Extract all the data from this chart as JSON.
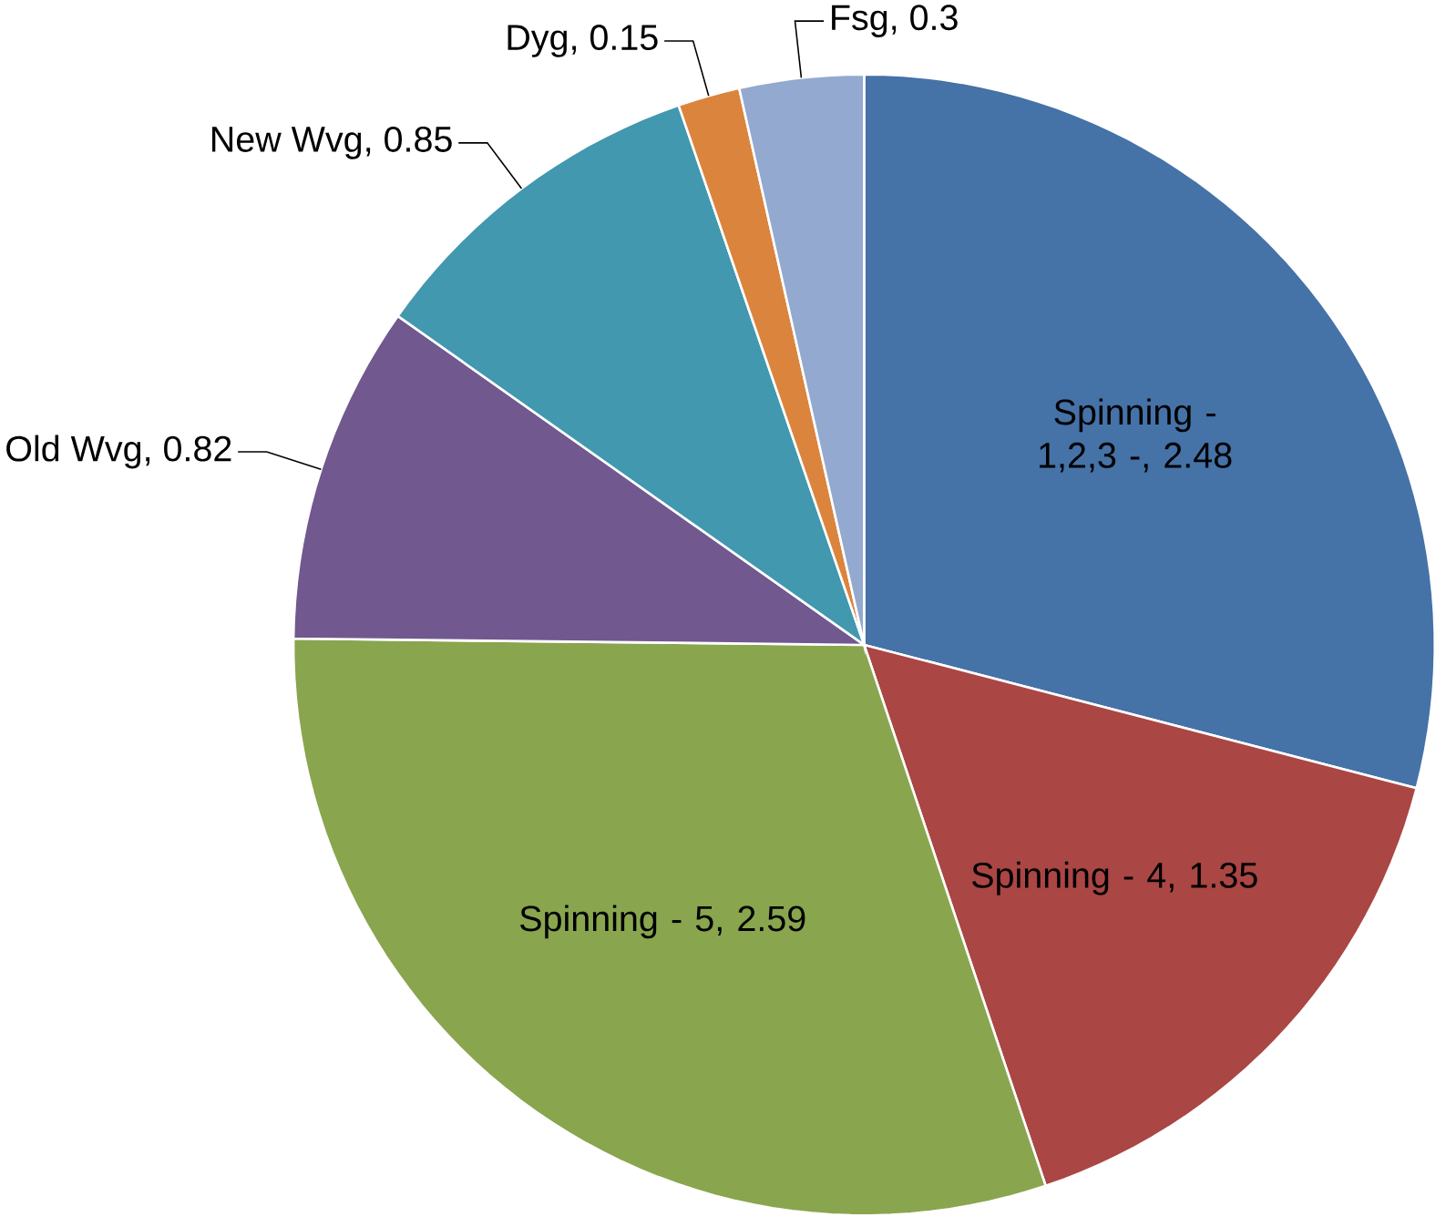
{
  "chart_data": {
    "type": "pie",
    "categories": [
      "Spinning - 1,2,3 -",
      "Spinning - 4",
      "Spinning - 5",
      "Old Wvg",
      "New Wvg",
      "Dyg",
      "Fsg"
    ],
    "values": [
      2.48,
      1.35,
      2.59,
      0.82,
      0.85,
      0.15,
      0.3
    ],
    "colors": [
      "#4572a7",
      "#aa4643",
      "#89a54e",
      "#71588f",
      "#4198af",
      "#db843d",
      "#93a9cf"
    ],
    "value_labels": [
      ", 2.48",
      ", 1.35",
      ", 2.59",
      ", 0.82",
      ", 0.85",
      ", 0.15",
      ", 0.3"
    ]
  }
}
